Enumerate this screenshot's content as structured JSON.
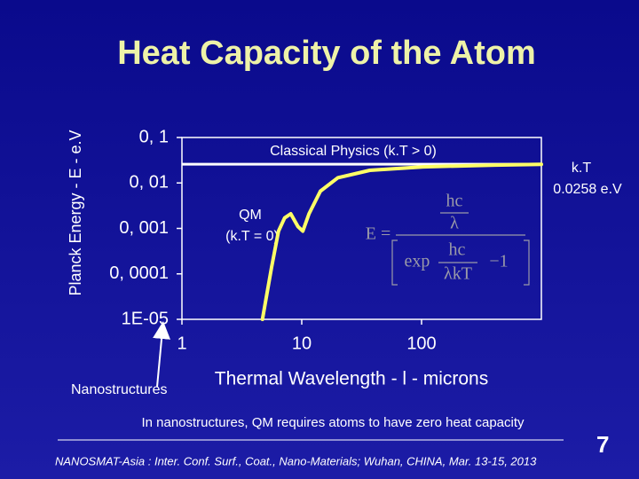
{
  "chart_data": {
    "type": "line",
    "title": "Heat Capacity of the Atom",
    "x_label": "Thermal Wavelength - l - microns",
    "y_label": "Planck Energy - E - e.V",
    "log_x": true,
    "log_y": true,
    "xlim": [
      1,
      1000
    ],
    "xticks": [
      1,
      10,
      100
    ],
    "ylim": [
      1e-05,
      0.1
    ],
    "yticks": [
      {
        "value": 0.1,
        "label": "0, 1"
      },
      {
        "value": 0.01,
        "label": "0, 01"
      },
      {
        "value": 0.001,
        "label": "0, 001"
      },
      {
        "value": 0.0001,
        "label": "0, 0001"
      },
      {
        "value": 1e-05,
        "label": "1E-05"
      }
    ],
    "series": [
      {
        "color": "#ffff66",
        "x": [
          4.7,
          5.6,
          6.4,
          7.2,
          8.1,
          9.3,
          10.2,
          11.5,
          14.3,
          20,
          37,
          103,
          410,
          1000
        ],
        "values": [
          1e-05,
          0.00014,
          0.00087,
          0.0017,
          0.0021,
          0.0011,
          0.00087,
          0.0021,
          0.0066,
          0.013,
          0.019,
          0.0226,
          0.0247,
          0.0258
        ]
      }
    ],
    "reference_line": {
      "value": 0.0258,
      "label": "Classical Physics  (k.T > 0)",
      "color": "#ffffff"
    },
    "annotations": {
      "kt_top": "k.T",
      "kt_value": "0.0258 e.V",
      "qm": "QM",
      "qm_sub": "(k.T = 0)",
      "nano": "Nanostructures"
    },
    "formula": {
      "lhs": "E =",
      "num": "hc",
      "den": "λ",
      "exp": "exp",
      "num2": "hc",
      "den2": "λkT",
      "minus": "−1"
    }
  },
  "slide": {
    "note": "In nanostructures, QM requires atoms to have zero heat capacity",
    "conference": "NANOSMAT-Asia : Inter. Conf. Surf., Coat., Nano-Materials; Wuhan, CHINA, Mar. 13-15, 2013",
    "page": "7"
  }
}
